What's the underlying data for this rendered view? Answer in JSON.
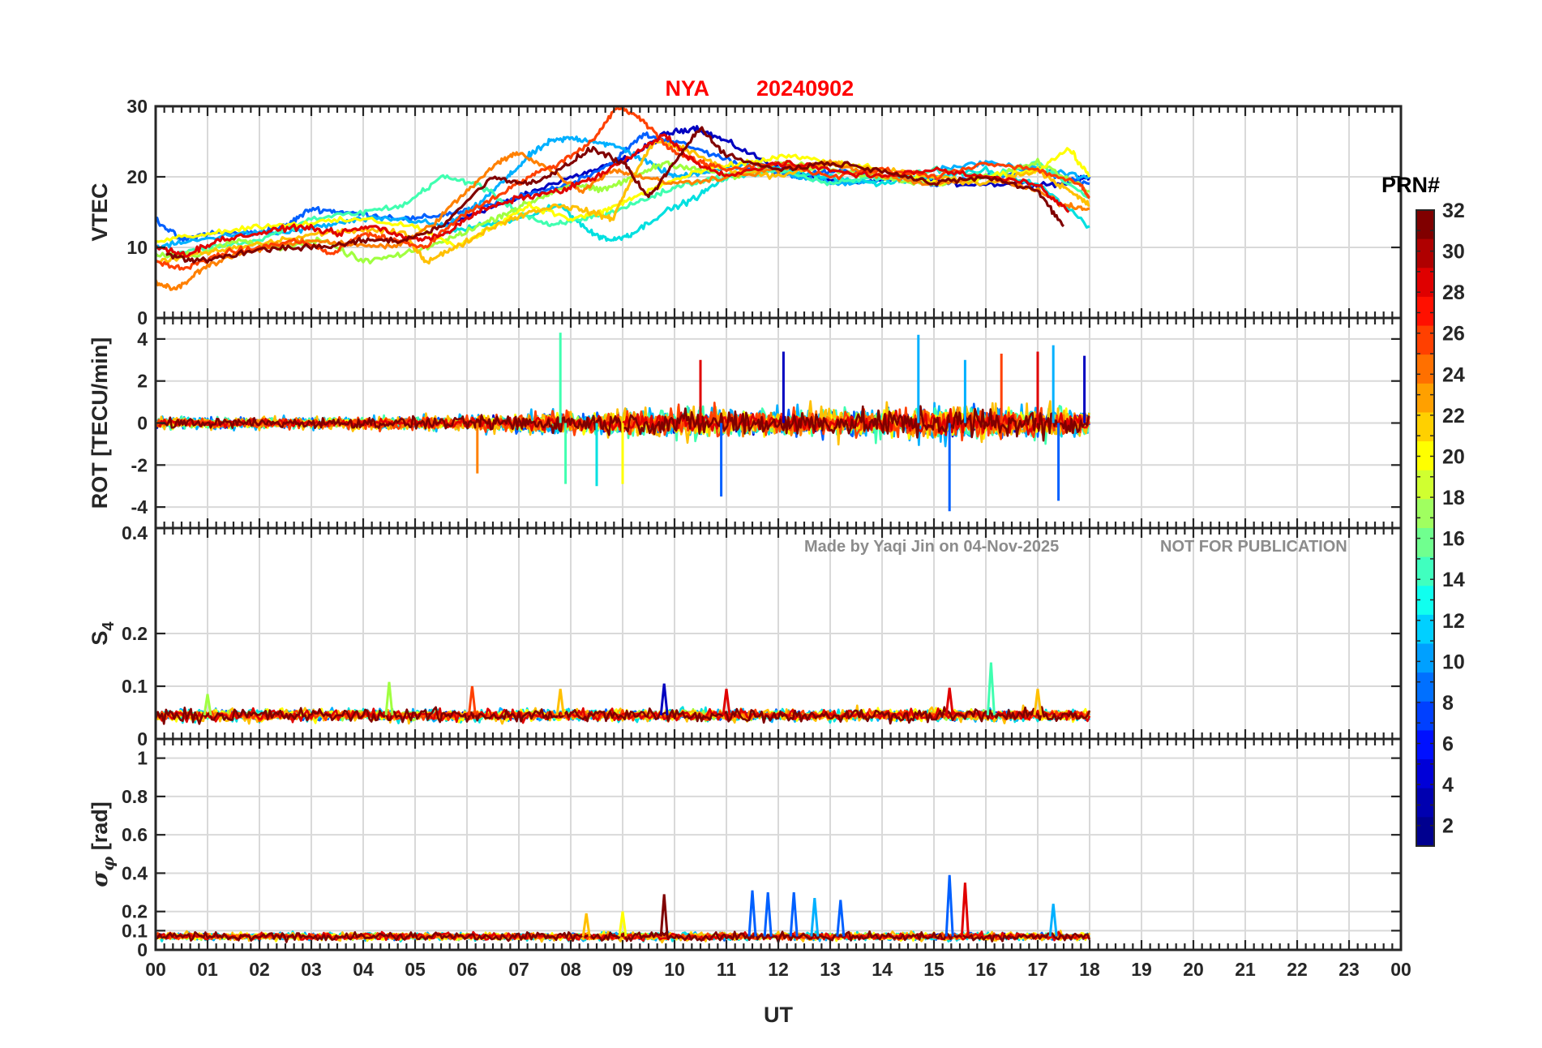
{
  "figure": {
    "title_station": "NYA",
    "title_date": "20240902",
    "xlabel": "UT",
    "watermark_left": "Made by Yaqi Jin on 04-Nov-2025",
    "watermark_right": "NOT FOR PUBLICATION",
    "colorbar_title": "PRN#",
    "colorbar_ticks": [
      "2",
      "4",
      "6",
      "8",
      "10",
      "12",
      "14",
      "16",
      "18",
      "20",
      "22",
      "24",
      "26",
      "28",
      "30",
      "32"
    ],
    "colors": {
      "title": "#ff0000",
      "watermark": "#8c8c8c",
      "axis": "#262626",
      "grid": "#d9d9d9"
    }
  },
  "chart_data": [
    {
      "type": "line",
      "panel": "VTEC",
      "ylabel": "VTEC",
      "ylim": [
        0,
        30
      ],
      "yticks": [
        "0",
        "10",
        "20",
        "30"
      ],
      "xlim": [
        0,
        24
      ],
      "xticks": [
        "00",
        "01",
        "02",
        "03",
        "04",
        "05",
        "06",
        "07",
        "08",
        "09",
        "10",
        "11",
        "12",
        "13",
        "14",
        "15",
        "16",
        "17",
        "18",
        "19",
        "20",
        "21",
        "22",
        "23",
        "00"
      ],
      "grid": true,
      "series": [
        {
          "color": "#0000c0",
          "x": [
            5.6,
            6.2,
            7,
            7.8,
            8.5,
            9.2,
            9.8,
            10.4,
            11,
            11.8,
            12.6,
            13.5,
            14.5,
            15.5,
            16.5,
            17.5,
            18
          ],
          "y": [
            13,
            15,
            17,
            19.5,
            21,
            23,
            26,
            27,
            25,
            22,
            20,
            19,
            20,
            19,
            19,
            19,
            20
          ]
        },
        {
          "color": "#0060ff",
          "x": [
            0,
            0.5,
            1,
            1.8,
            2.5,
            3,
            3.6,
            4.2,
            5,
            5.8,
            6.5,
            7.2,
            8,
            8.8,
            9.4,
            10,
            10.8,
            11.6,
            12.4,
            13.2,
            14,
            15,
            16,
            17,
            18
          ],
          "y": [
            14,
            11,
            12,
            12,
            13,
            15.5,
            15,
            14.5,
            14,
            15,
            16,
            17.5,
            19,
            22,
            26,
            25,
            23,
            21,
            20,
            21,
            20,
            19,
            20,
            21,
            19
          ]
        },
        {
          "color": "#00b0ff",
          "x": [
            0,
            0.8,
            1.6,
            2.4,
            3.2,
            4,
            4.8,
            5.6,
            6.2,
            6.8,
            7.2,
            7.6,
            8,
            8.5,
            9,
            9.5,
            10,
            10.8,
            11.6,
            12.4,
            13.2,
            14,
            15,
            16,
            17,
            18
          ],
          "y": [
            10,
            11,
            12,
            12,
            13,
            14,
            14,
            13,
            16,
            20,
            23,
            25,
            25.5,
            25,
            24,
            22,
            20,
            21,
            22,
            20,
            19,
            19.5,
            21,
            22,
            21,
            20
          ]
        },
        {
          "color": "#00e0e0",
          "x": [
            5.5,
            6.2,
            7,
            7.8,
            8.4,
            8.8,
            9.2,
            9.8,
            10.4,
            11,
            12,
            13,
            14,
            15,
            16,
            17,
            18
          ],
          "y": [
            12,
            13,
            14,
            16,
            12,
            11,
            12,
            15,
            17,
            20,
            21,
            20,
            19,
            20,
            21,
            19,
            13
          ]
        },
        {
          "color": "#40ffb0",
          "x": [
            0.2,
            1,
            2,
            3,
            4,
            4.8,
            5.5,
            6.2,
            7,
            7.6,
            8.2,
            8.8,
            9.5,
            10.2,
            11,
            12,
            13,
            14,
            15,
            16,
            17,
            18
          ],
          "y": [
            9,
            10,
            11,
            14,
            15,
            16,
            20,
            19,
            15,
            13,
            14,
            15,
            17,
            19,
            20,
            21,
            19,
            20,
            21,
            20,
            22,
            17
          ]
        },
        {
          "color": "#a0ff40",
          "x": [
            0,
            0.8,
            1.6,
            2.4,
            3.2,
            4,
            4.8,
            5.6,
            6.2,
            6.8,
            7.4,
            8,
            8.6,
            9.2,
            9.8,
            10.5,
            11.2,
            12,
            13,
            14,
            15,
            16,
            17,
            18
          ],
          "y": [
            9,
            9,
            11,
            10,
            11,
            8,
            9,
            11,
            13,
            15,
            17,
            19,
            18,
            20,
            22,
            21,
            20,
            22,
            21,
            20,
            19,
            20,
            22,
            18
          ]
        },
        {
          "color": "#ffff00",
          "x": [
            0,
            1,
            2,
            3,
            4,
            5,
            5.8,
            6.5,
            7.2,
            8,
            8.6,
            9.2,
            9.8,
            10.6,
            11.4,
            12.2,
            13,
            14,
            15,
            16,
            17,
            17.6,
            18
          ],
          "y": [
            11,
            12,
            13,
            13.5,
            14,
            13,
            10,
            13,
            16,
            14,
            15,
            17,
            19,
            21,
            22,
            23,
            22,
            21,
            19,
            20,
            21,
            24,
            20
          ]
        },
        {
          "color": "#ffc000",
          "x": [
            0,
            0.8,
            1.6,
            2.4,
            3.2,
            4,
            4.8,
            5.2,
            5.8,
            6.5,
            7.2,
            7.8,
            8.4,
            8.8,
            9.2,
            9.6,
            10.2,
            11,
            12,
            13,
            14,
            15,
            16,
            17,
            17.6,
            18
          ],
          "y": [
            8,
            9,
            10,
            11,
            12,
            12.5,
            12,
            8,
            10,
            13,
            15,
            16,
            15,
            14,
            20,
            25,
            24,
            21,
            20,
            22,
            21,
            20,
            19,
            21,
            18,
            16
          ]
        },
        {
          "color": "#ff8000",
          "x": [
            0,
            0.4,
            0.9,
            1.5,
            2.2,
            3,
            3.8,
            4.6,
            5.3,
            6,
            6.6,
            7,
            7.6,
            8.2,
            8.8,
            9.4,
            10,
            11,
            12,
            13,
            14,
            15,
            16,
            17,
            17.5,
            18
          ],
          "y": [
            5,
            4,
            7,
            9,
            10,
            11,
            10.5,
            10,
            13,
            18,
            22,
            23.5,
            21,
            18,
            21,
            20,
            19,
            20,
            21,
            22,
            20,
            19,
            20,
            18,
            16,
            15.5
          ]
        },
        {
          "color": "#ff4000",
          "x": [
            0,
            0.6,
            1.2,
            2,
            2.8,
            3.4,
            4,
            4.6,
            5.2,
            5.8,
            6.5,
            7.2,
            7.8,
            8.4,
            8.9,
            9.4,
            9.9,
            10.5,
            11,
            12,
            13,
            14,
            15,
            16,
            17,
            17.8,
            18
          ],
          "y": [
            8,
            7,
            9,
            10,
            11,
            9,
            12,
            11,
            10,
            14,
            17,
            20,
            22,
            25,
            30,
            28,
            24,
            22,
            21,
            22,
            20,
            21,
            20,
            22,
            21,
            19,
            17
          ]
        },
        {
          "color": "#e00000",
          "x": [
            0,
            0.6,
            1.2,
            2,
            2.8,
            3.5,
            4.2,
            5,
            5.6,
            6.2,
            7,
            7.8,
            8.5,
            9.2,
            9.8,
            10.4,
            11,
            12,
            13,
            14,
            15,
            16,
            17,
            17.6
          ],
          "y": [
            10,
            9,
            11,
            12,
            13,
            12,
            13,
            11,
            12,
            15,
            17,
            18,
            20,
            23,
            26,
            22,
            20,
            22,
            21,
            20,
            21,
            20,
            19,
            15
          ]
        },
        {
          "color": "#800000",
          "x": [
            0.2,
            0.8,
            1.5,
            2.4,
            3.3,
            4,
            4.8,
            5.5,
            6.5,
            7.2,
            7.8,
            8.4,
            9,
            9.5,
            10,
            10.5,
            11,
            12,
            13,
            14,
            15,
            16,
            17,
            17.5
          ],
          "y": [
            9,
            8,
            9,
            10,
            10,
            11,
            11,
            13,
            20,
            19,
            21,
            24,
            22,
            17,
            22,
            27,
            23,
            21,
            22,
            21,
            19,
            20,
            18,
            13
          ]
        }
      ]
    },
    {
      "type": "line",
      "panel": "ROT",
      "ylabel": "ROT [TECU/min]",
      "ylim": [
        -5,
        5
      ],
      "yticks": [
        "-4",
        "-2",
        "0",
        "2",
        "4"
      ],
      "extra_top_tick": "0.4",
      "grid": true,
      "x_range": [
        0,
        18
      ],
      "activity_envelope": [
        {
          "x": 0,
          "amp": 0.8
        },
        {
          "x": 3,
          "amp": 0.7
        },
        {
          "x": 6,
          "amp": 0.9
        },
        {
          "x": 7.5,
          "amp": 1.4
        },
        {
          "x": 9,
          "amp": 1.5
        },
        {
          "x": 10.5,
          "amp": 2.0
        },
        {
          "x": 12,
          "amp": 1.8
        },
        {
          "x": 14,
          "amp": 1.9
        },
        {
          "x": 15.5,
          "amp": 2.2
        },
        {
          "x": 17,
          "amp": 2.0
        },
        {
          "x": 18,
          "amp": 1.6
        }
      ],
      "spikes": [
        {
          "x": 7.8,
          "y": 4.3,
          "color": "#40ffb0"
        },
        {
          "x": 7.9,
          "y": -2.9,
          "color": "#40ffb0"
        },
        {
          "x": 8.5,
          "y": -3.0,
          "color": "#00e0e0"
        },
        {
          "x": 9.0,
          "y": -2.9,
          "color": "#ffff00"
        },
        {
          "x": 10.5,
          "y": 3.0,
          "color": "#e00000"
        },
        {
          "x": 10.9,
          "y": -3.5,
          "color": "#0060ff"
        },
        {
          "x": 12.1,
          "y": 3.4,
          "color": "#0000c0"
        },
        {
          "x": 14.7,
          "y": 4.2,
          "color": "#00b0ff"
        },
        {
          "x": 15.3,
          "y": -4.2,
          "color": "#0060ff"
        },
        {
          "x": 15.6,
          "y": 3.0,
          "color": "#00b0ff"
        },
        {
          "x": 16.3,
          "y": 3.3,
          "color": "#ff4000"
        },
        {
          "x": 17.0,
          "y": 3.4,
          "color": "#e00000"
        },
        {
          "x": 17.3,
          "y": 3.7,
          "color": "#00b0ff"
        },
        {
          "x": 17.4,
          "y": -3.7,
          "color": "#0060ff"
        },
        {
          "x": 17.9,
          "y": 3.2,
          "color": "#0000c0"
        },
        {
          "x": 6.2,
          "y": -2.4,
          "color": "#ff8000"
        }
      ]
    },
    {
      "type": "line",
      "panel": "S4",
      "ylabel": "S_4",
      "ylim": [
        0,
        0.4
      ],
      "yticks": [
        "0",
        "0.1",
        "0.2"
      ],
      "grid": true,
      "x_range": [
        0,
        18
      ],
      "baseline": 0.045,
      "noise_amp": 0.02,
      "spikes": [
        {
          "x": 1.0,
          "y": 0.085,
          "color": "#a0ff40"
        },
        {
          "x": 4.5,
          "y": 0.108,
          "color": "#a0ff40"
        },
        {
          "x": 6.1,
          "y": 0.1,
          "color": "#ff4000"
        },
        {
          "x": 7.8,
          "y": 0.095,
          "color": "#ffc000"
        },
        {
          "x": 9.8,
          "y": 0.105,
          "color": "#0000c0"
        },
        {
          "x": 11.0,
          "y": 0.095,
          "color": "#e00000"
        },
        {
          "x": 15.3,
          "y": 0.097,
          "color": "#e00000"
        },
        {
          "x": 16.1,
          "y": 0.145,
          "color": "#40ffb0"
        },
        {
          "x": 17.0,
          "y": 0.095,
          "color": "#ffc000"
        }
      ]
    },
    {
      "type": "line",
      "panel": "sigma_phi",
      "ylabel": "σ_φ [rad]",
      "ylim": [
        0,
        1.1
      ],
      "yticks": [
        "0",
        "0.1",
        "0.2",
        "0.4",
        "0.6",
        "0.8",
        "1"
      ],
      "grid": true,
      "x_range": [
        0,
        18
      ],
      "baseline": 0.07,
      "noise_amp": 0.035,
      "spikes": [
        {
          "x": 9.8,
          "y": 0.29,
          "color": "#800000"
        },
        {
          "x": 11.5,
          "y": 0.31,
          "color": "#0060ff"
        },
        {
          "x": 11.8,
          "y": 0.3,
          "color": "#0060ff"
        },
        {
          "x": 12.3,
          "y": 0.3,
          "color": "#0060ff"
        },
        {
          "x": 12.7,
          "y": 0.27,
          "color": "#00b0ff"
        },
        {
          "x": 13.2,
          "y": 0.26,
          "color": "#0060ff"
        },
        {
          "x": 15.3,
          "y": 0.39,
          "color": "#0060ff"
        },
        {
          "x": 15.6,
          "y": 0.35,
          "color": "#e00000"
        },
        {
          "x": 17.3,
          "y": 0.24,
          "color": "#00b0ff"
        },
        {
          "x": 8.3,
          "y": 0.19,
          "color": "#ffc000"
        },
        {
          "x": 9.0,
          "y": 0.2,
          "color": "#ffff00"
        }
      ]
    }
  ]
}
